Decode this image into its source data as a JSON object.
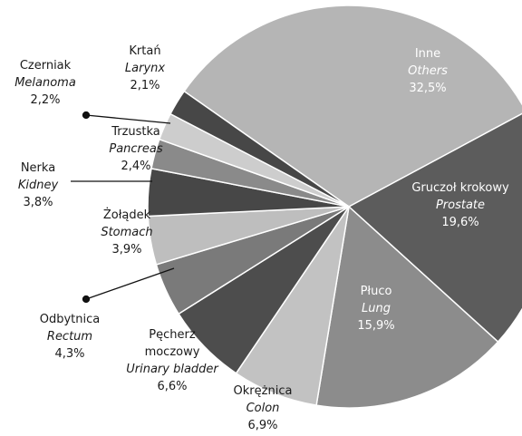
{
  "chart_data": {
    "type": "pie",
    "categories": [
      "Inne",
      "Gruczoł krokowy",
      "Płuco",
      "Okrężnica",
      "Pęcherz moczowy",
      "Odbytnica",
      "Żołądek",
      "Nerka",
      "Trzustka",
      "Czerniak",
      "Krtań"
    ],
    "categories_en": [
      "Others",
      "Prostate",
      "Lung",
      "Colon",
      "Urinary bladder",
      "Rectum",
      "Stomach",
      "Kidney",
      "Pancreas",
      "Melanoma",
      "Larynx"
    ],
    "values": [
      32.5,
      19.6,
      15.9,
      6.9,
      6.6,
      4.3,
      3.9,
      3.8,
      2.4,
      2.2,
      2.1
    ],
    "value_labels": [
      "32,5%",
      "19,6%",
      "15,9%",
      "6,9%",
      "6,6%",
      "4,3%",
      "3,9%",
      "3,8%",
      "2,4%",
      "2,2%",
      "2,1%"
    ],
    "colors": [
      "#b5b5b5",
      "#5c5c5c",
      "#8c8c8c",
      "#c2c2c2",
      "#4d4d4d",
      "#7a7a7a",
      "#bebebe",
      "#474747",
      "#8a8a8a",
      "#cdcdcd",
      "#474747"
    ]
  }
}
